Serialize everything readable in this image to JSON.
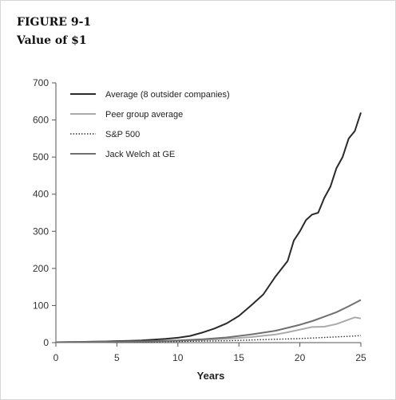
{
  "figure": {
    "number": "FIGURE 9-1",
    "title": "Value of $1"
  },
  "chart_data": {
    "type": "line",
    "xlabel": "Years",
    "ylabel": "",
    "xlim": [
      0,
      25
    ],
    "ylim": [
      0,
      700
    ],
    "xticks": [
      0,
      5,
      10,
      15,
      20,
      25
    ],
    "yticks": [
      0,
      100,
      200,
      300,
      400,
      500,
      600,
      700
    ],
    "grid": false,
    "legend_position": "top-left",
    "series": [
      {
        "name": "Average (8 outsider companies)",
        "color": "#2a2a2a",
        "style": "solid",
        "x": [
          0,
          1,
          2,
          3,
          4,
          5,
          6,
          7,
          8,
          9,
          10,
          11,
          12,
          13,
          14,
          15,
          16,
          17,
          18,
          19,
          19.5,
          20,
          20.5,
          21,
          21.5,
          22,
          22.5,
          23,
          23.5,
          24,
          24.5,
          25
        ],
        "y": [
          1,
          1.5,
          2,
          2.5,
          3,
          4,
          5,
          6,
          8,
          10,
          13,
          18,
          27,
          38,
          52,
          72,
          100,
          130,
          178,
          220,
          275,
          300,
          330,
          345,
          350,
          390,
          420,
          470,
          500,
          550,
          570,
          620
        ]
      },
      {
        "name": "Peer group average",
        "color": "#aaaaaa",
        "style": "solid",
        "x": [
          0,
          2,
          4,
          6,
          8,
          10,
          12,
          14,
          16,
          18,
          19,
          20,
          21,
          22,
          23,
          24,
          24.5,
          25
        ],
        "y": [
          1,
          1.3,
          1.8,
          2.5,
          3.5,
          5,
          7,
          10,
          15,
          22,
          28,
          35,
          42,
          43,
          50,
          62,
          68,
          65
        ]
      },
      {
        "name": "S&P 500",
        "color": "#333333",
        "style": "dotted",
        "x": [
          0,
          2,
          4,
          6,
          8,
          10,
          12,
          14,
          16,
          18,
          20,
          22,
          24,
          25
        ],
        "y": [
          1,
          1.2,
          1.5,
          2,
          2.5,
          3,
          4,
          5,
          7,
          9,
          11,
          14,
          17,
          19
        ]
      },
      {
        "name": "Jack Welch at GE",
        "color": "#707070",
        "style": "solid",
        "x": [
          0,
          2,
          4,
          6,
          8,
          10,
          12,
          14,
          16,
          18,
          20,
          21,
          22,
          23,
          24,
          25
        ],
        "y": [
          1,
          1.5,
          2,
          3,
          4,
          6,
          9,
          14,
          22,
          32,
          48,
          58,
          70,
          82,
          98,
          115
        ]
      }
    ]
  }
}
